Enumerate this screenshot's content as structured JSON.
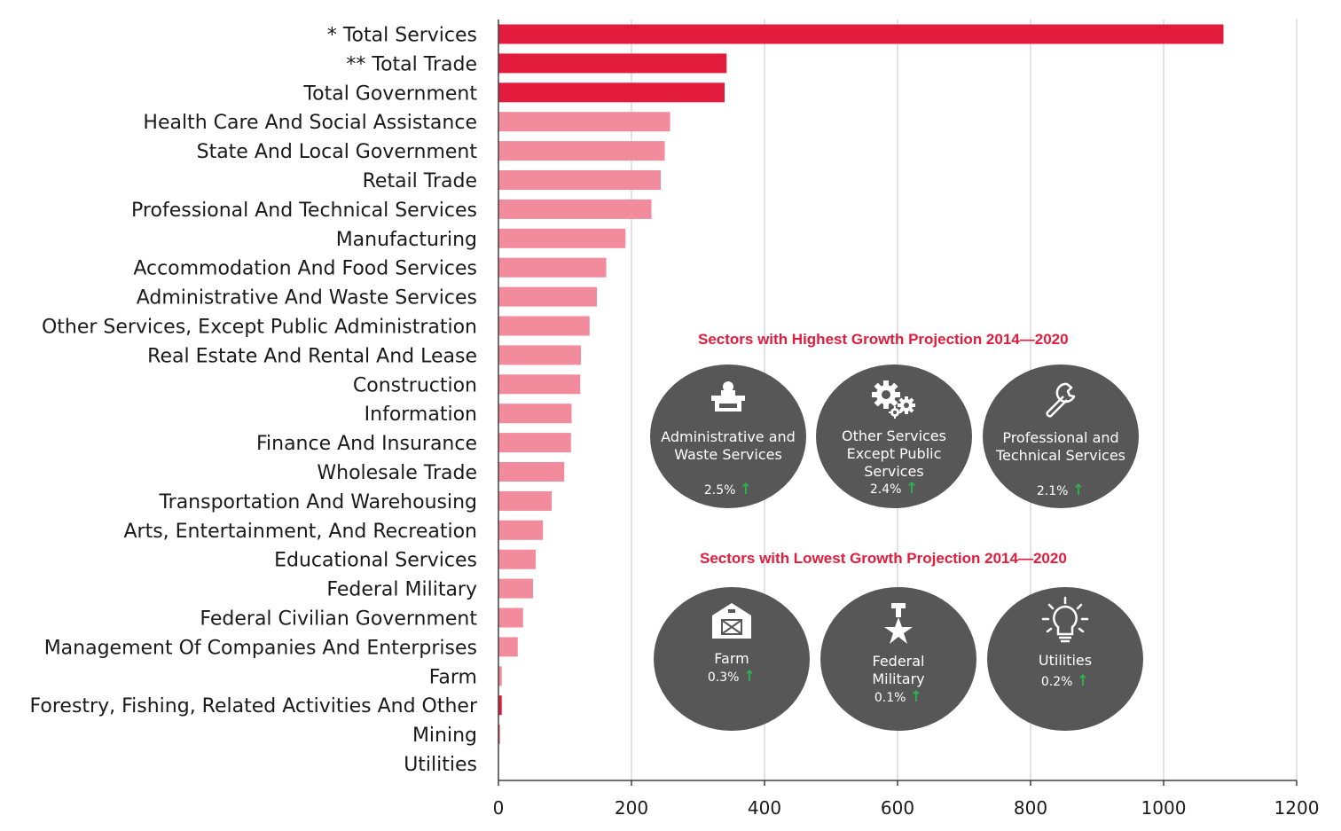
{
  "chart_data": {
    "type": "bar",
    "orientation": "horizontal",
    "categories": [
      "* Total Services",
      "** Total Trade",
      "Total Government",
      "Health Care And Social Assistance",
      "State And Local Government",
      "Retail Trade",
      "Professional And Technical Services",
      "Manufacturing",
      "Accommodation And Food Services",
      "Administrative And Waste Services",
      "Other Services, Except Public Administration",
      "Real Estate And Rental And Lease",
      "Construction",
      "Information",
      "Finance And Insurance",
      "Wholesale Trade",
      "Transportation And Warehousing",
      "Arts, Entertainment, And Recreation",
      "Educational Services",
      "Federal Military",
      "Federal Civilian Government",
      "Management Of Companies And Enterprises",
      "Farm",
      "Forestry, Fishing, Related Activities And Other",
      "Mining",
      "Utilities"
    ],
    "values": [
      1090,
      343,
      340,
      258,
      250,
      244,
      230,
      191,
      162,
      148,
      137,
      124,
      123,
      110,
      109,
      99,
      80,
      67,
      56,
      52,
      37,
      29,
      5,
      5,
      2,
      0
    ],
    "highlight_count": 3,
    "xlim": [
      0,
      1200
    ],
    "xticks": [
      0,
      200,
      400,
      600,
      800,
      1000,
      1200
    ],
    "grid": true,
    "colors": {
      "highlight": "#e31b3c",
      "normal": "#f28b9c",
      "grid": "#d9d9d9",
      "axis": "#404040"
    }
  },
  "highest_panel": {
    "title": "Sectors with Highest Growth Projection 2014—2020",
    "items": [
      {
        "icon": "desk-icon",
        "label": "Administrative and Waste Services",
        "value": "2.5%"
      },
      {
        "icon": "gears-icon",
        "label": "Other Services Except Public Services",
        "value": "2.4%"
      },
      {
        "icon": "wrench-icon",
        "label": "Professional and Technical Services",
        "value": "2.1%"
      }
    ]
  },
  "lowest_panel": {
    "title": "Sectors with Lowest Growth Projection 2014—2020",
    "items": [
      {
        "icon": "barn-icon",
        "label": "Farm",
        "value": "0.3%"
      },
      {
        "icon": "medal-icon",
        "label": "Federal Military",
        "value": "0.1%"
      },
      {
        "icon": "lightbulb-icon",
        "label": "Utilities",
        "value": "0.2%"
      }
    ]
  },
  "arrow_glyph": "↑",
  "circle_color": "#575757",
  "accent_color": "#e31b3c",
  "up_arrow_color": "#2eb04f"
}
